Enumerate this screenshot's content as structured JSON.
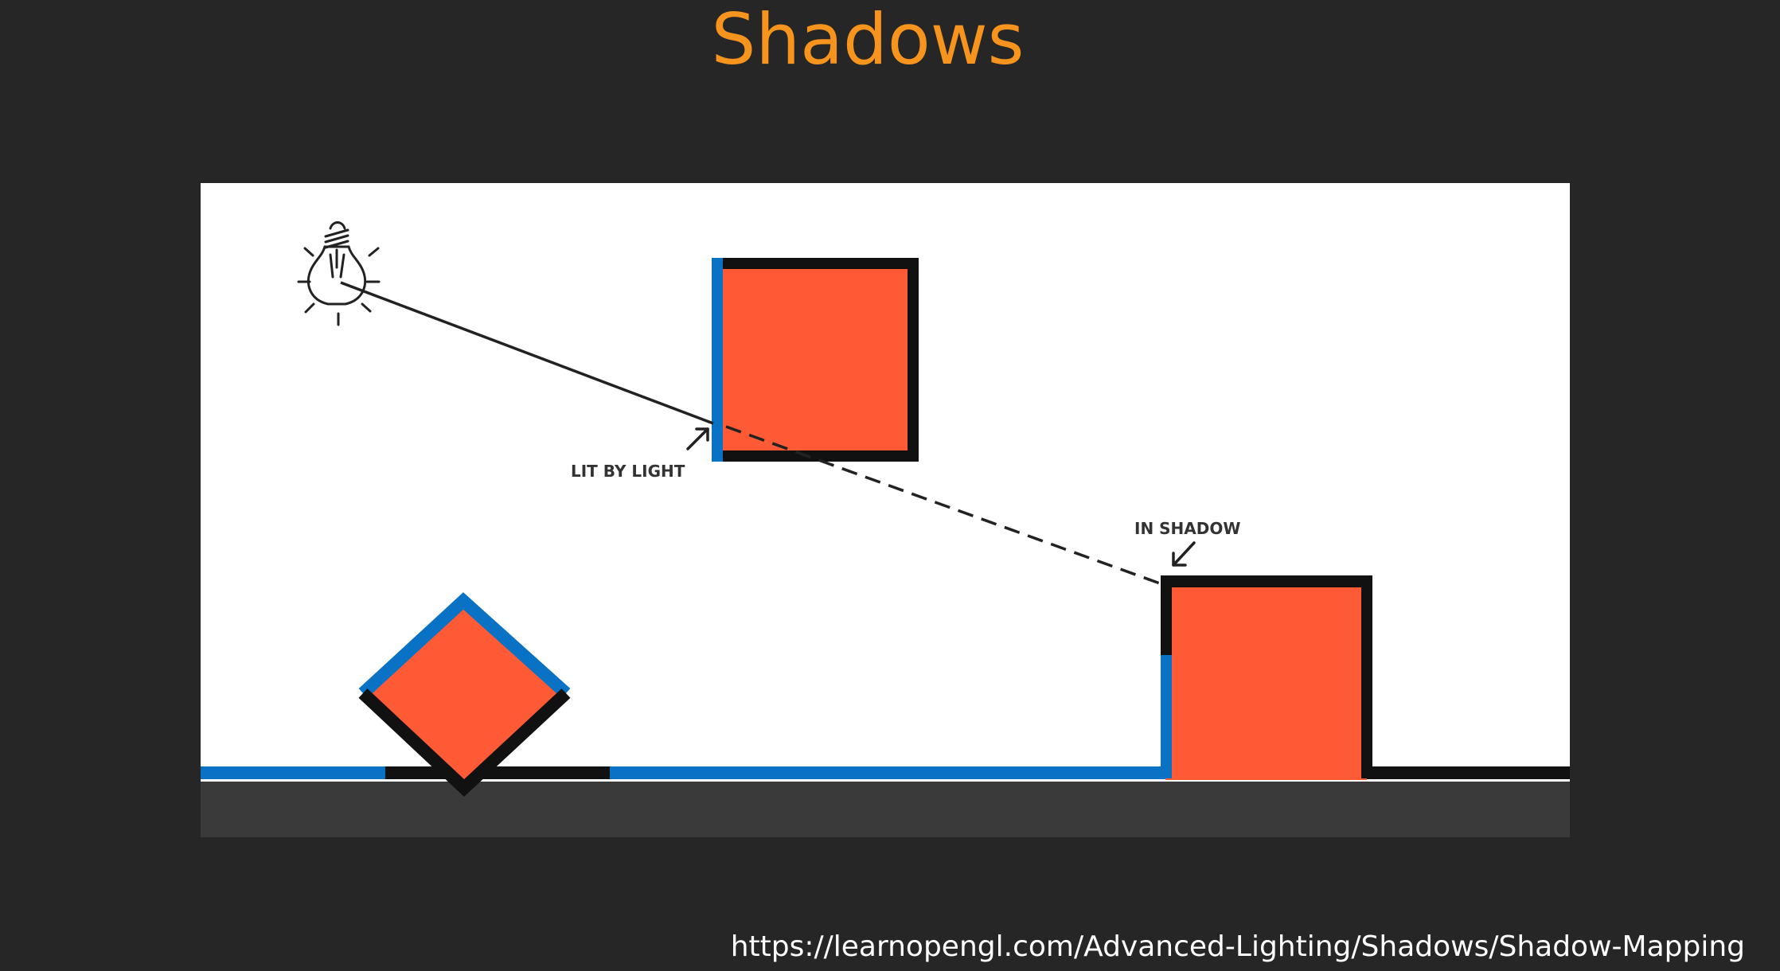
{
  "slide": {
    "title": "Shadows",
    "source_url": "https://learnopengl.com/Advanced-Lighting/Shadows/Shadow-Mapping"
  },
  "diagram": {
    "labels": {
      "lit": "LIT BY LIGHT",
      "shadow": "IN SHADOW"
    },
    "icons": [
      "light-bulb-icon"
    ],
    "colors": {
      "slide_background": "#262626",
      "title": "#f7941d",
      "box_fill": "#ff5a36",
      "lit_edge": "#0a72c4",
      "unlit_edge": "#111111",
      "ground": "#3a3a3a",
      "figure_background": "#ffffff"
    }
  }
}
